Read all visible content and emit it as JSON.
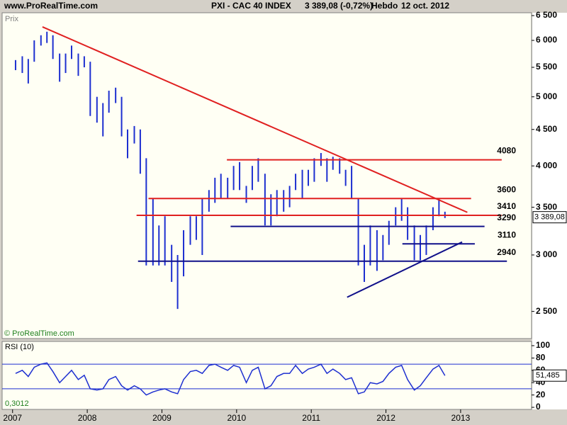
{
  "header": {
    "site": "www.ProRealTime.com",
    "title": "PXI - CAC 40 INDEX",
    "quote": "3 389,08 (-0,72%)",
    "period": "Hebdo",
    "date": "12 oct. 2012"
  },
  "chart_data": [
    {
      "type": "range-bar",
      "ylabel": "Prix",
      "footer": "© ProRealTime.com",
      "log_scale": true,
      "color": "#1d2fd0",
      "x": [
        2007.04,
        2007.13,
        2007.21,
        2007.29,
        2007.38,
        2007.46,
        2007.54,
        2007.63,
        2007.71,
        2007.79,
        2007.88,
        2007.96,
        2008.04,
        2008.13,
        2008.21,
        2008.29,
        2008.38,
        2008.46,
        2008.54,
        2008.63,
        2008.71,
        2008.79,
        2008.88,
        2008.96,
        2009.04,
        2009.13,
        2009.21,
        2009.29,
        2009.38,
        2009.46,
        2009.54,
        2009.63,
        2009.71,
        2009.79,
        2009.88,
        2009.96,
        2010.04,
        2010.13,
        2010.21,
        2010.29,
        2010.38,
        2010.46,
        2010.54,
        2010.63,
        2010.71,
        2010.79,
        2010.88,
        2010.96,
        2011.04,
        2011.13,
        2011.21,
        2011.29,
        2011.38,
        2011.46,
        2011.54,
        2011.63,
        2011.71,
        2011.79,
        2011.88,
        2011.96,
        2012.04,
        2012.13,
        2012.21,
        2012.29,
        2012.38,
        2012.46,
        2012.54,
        2012.63,
        2012.71,
        2012.79
      ],
      "high": [
        5630,
        5700,
        5650,
        6000,
        6100,
        6170,
        6100,
        5750,
        5750,
        5900,
        5750,
        5700,
        5600,
        5000,
        4900,
        5100,
        5150,
        5000,
        4500,
        4550,
        4500,
        4100,
        3600,
        3300,
        3400,
        3100,
        3000,
        3250,
        3400,
        3400,
        3600,
        3700,
        3850,
        3900,
        3850,
        4000,
        4050,
        3750,
        4000,
        4100,
        3900,
        3650,
        3700,
        3700,
        3750,
        3900,
        3950,
        3950,
        4100,
        4170,
        4100,
        4120,
        4100,
        3950,
        4000,
        3600,
        3100,
        3300,
        3250,
        3200,
        3350,
        3500,
        3600,
        3500,
        3300,
        3200,
        3300,
        3500,
        3600,
        3450
      ],
      "low": [
        5450,
        5400,
        5220,
        5600,
        5900,
        5950,
        5650,
        5250,
        5400,
        5650,
        5350,
        5500,
        4700,
        4600,
        4400,
        4750,
        4900,
        4400,
        4100,
        4300,
        3900,
        2900,
        2900,
        2900,
        2900,
        2750,
        2520,
        2800,
        3100,
        3150,
        3000,
        3450,
        3550,
        3600,
        3600,
        3700,
        3700,
        3550,
        3700,
        3800,
        3300,
        3300,
        3400,
        3450,
        3500,
        3700,
        3600,
        3750,
        3800,
        4000,
        3800,
        3950,
        3900,
        3750,
        3600,
        2900,
        2750,
        2900,
        2850,
        2950,
        3100,
        3300,
        3350,
        3150,
        2950,
        2950,
        3000,
        3250,
        3400,
        3380
      ],
      "last": {
        "value": 3389.08,
        "label": "3 389,08"
      },
      "xlim": [
        2006.86,
        2013.95
      ],
      "xticks": [
        2007,
        2008,
        2009,
        2010,
        2011,
        2012,
        2013
      ],
      "ylim": [
        2290,
        6560
      ],
      "yticks": [
        {
          "value": 2500,
          "label": "2 500"
        },
        {
          "value": 3000,
          "label": "3 000"
        },
        {
          "value": 3500,
          "label": "3 500"
        },
        {
          "value": 4000,
          "label": "4 000"
        },
        {
          "value": 4500,
          "label": "4 500"
        },
        {
          "value": 5000,
          "label": "5 000"
        },
        {
          "value": 5500,
          "label": "5 500"
        },
        {
          "value": 6000,
          "label": "6 000"
        },
        {
          "value": 6500,
          "label": "6 500"
        }
      ],
      "trendlines": [
        {
          "color": "#e02020",
          "x": [
            2007.4,
            2013.09
          ],
          "y": [
            6267,
            3443
          ]
        },
        {
          "color": "#10108a",
          "x": [
            2011.48,
            2013.02
          ],
          "y": [
            2617,
            3128
          ]
        }
      ],
      "levels": [
        {
          "value": 4080,
          "color": "#e02020",
          "x": [
            2009.87,
            2013.55
          ]
        },
        {
          "value": 3600,
          "color": "#e02020",
          "x": [
            2008.82,
            2013.14
          ]
        },
        {
          "value": 3410,
          "color": "#e02020",
          "x": [
            2008.66,
            2013.55
          ]
        },
        {
          "value": 3290,
          "color": "#10108a",
          "x": [
            2009.92,
            2013.32
          ]
        },
        {
          "value": 3110,
          "color": "#10108a",
          "x": [
            2012.22,
            2013.19
          ]
        },
        {
          "value": 2940,
          "color": "#10108a",
          "x": [
            2008.68,
            2013.62
          ]
        }
      ]
    },
    {
      "type": "line",
      "title": "RSI (10)",
      "footer": "0,3012",
      "color": "#1d2fd0",
      "x": [
        2007.04,
        2007.13,
        2007.21,
        2007.29,
        2007.38,
        2007.46,
        2007.54,
        2007.63,
        2007.71,
        2007.79,
        2007.88,
        2007.96,
        2008.04,
        2008.13,
        2008.21,
        2008.29,
        2008.38,
        2008.46,
        2008.54,
        2008.63,
        2008.71,
        2008.79,
        2008.88,
        2008.96,
        2009.04,
        2009.13,
        2009.21,
        2009.29,
        2009.38,
        2009.46,
        2009.54,
        2009.63,
        2009.71,
        2009.79,
        2009.88,
        2009.96,
        2010.04,
        2010.13,
        2010.21,
        2010.29,
        2010.38,
        2010.46,
        2010.54,
        2010.63,
        2010.71,
        2010.79,
        2010.88,
        2010.96,
        2011.04,
        2011.13,
        2011.21,
        2011.29,
        2011.38,
        2011.46,
        2011.54,
        2011.63,
        2011.71,
        2011.79,
        2011.88,
        2011.96,
        2012.04,
        2012.13,
        2012.21,
        2012.29,
        2012.38,
        2012.46,
        2012.54,
        2012.63,
        2012.71,
        2012.79
      ],
      "values": [
        55,
        60,
        50,
        65,
        70,
        72,
        58,
        40,
        50,
        60,
        45,
        52,
        30,
        28,
        30,
        45,
        50,
        35,
        28,
        35,
        30,
        20,
        25,
        28,
        30,
        25,
        22,
        45,
        58,
        60,
        55,
        68,
        70,
        65,
        60,
        68,
        65,
        40,
        60,
        65,
        30,
        35,
        50,
        55,
        55,
        68,
        55,
        62,
        65,
        70,
        55,
        62,
        55,
        45,
        48,
        22,
        25,
        40,
        38,
        42,
        55,
        65,
        68,
        45,
        28,
        35,
        48,
        62,
        68,
        51.485
      ],
      "last": {
        "value": 51.485,
        "label": "51,485"
      },
      "xlim": [
        2006.86,
        2013.95
      ],
      "ylim": [
        -3.4,
        106.9
      ],
      "yticks": [
        0,
        20,
        40,
        60,
        80,
        100
      ],
      "levels": [
        30,
        70
      ]
    }
  ]
}
